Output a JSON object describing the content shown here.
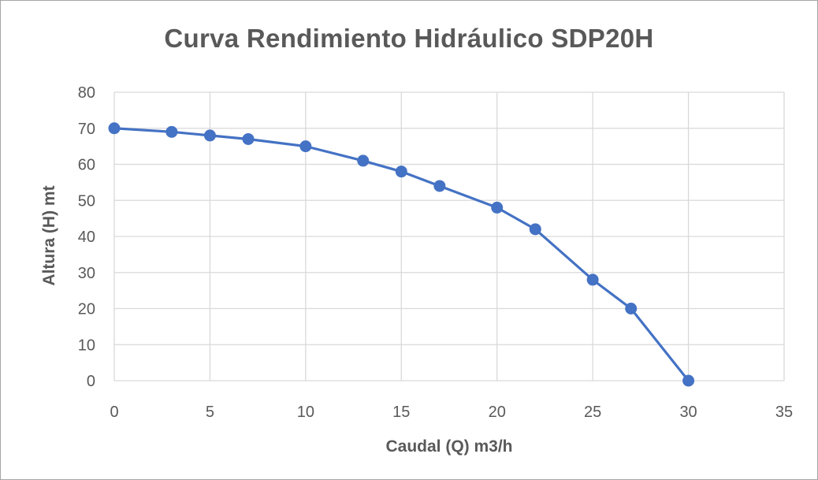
{
  "chart_data": {
    "type": "scatter",
    "title": "Curva Rendimiento Hidráulico SDP20H",
    "xlabel": "Caudal (Q) m3/h",
    "ylabel": "Altura (H) mt",
    "xlim": [
      0,
      35
    ],
    "ylim": [
      0,
      80
    ],
    "xticks": [
      0,
      5,
      10,
      15,
      20,
      25,
      30,
      35
    ],
    "yticks": [
      0,
      10,
      20,
      30,
      40,
      50,
      60,
      70,
      80
    ],
    "grid": true,
    "legend": "none",
    "series": [
      {
        "x": [
          0,
          3,
          5,
          7,
          10,
          13,
          15,
          17,
          20,
          22,
          25,
          27,
          30
        ],
        "values": [
          70,
          69,
          68,
          67,
          65,
          61,
          58,
          54,
          48,
          42,
          28,
          20,
          0
        ],
        "color": "#4472c4",
        "style": "line-with-markers"
      }
    ]
  }
}
